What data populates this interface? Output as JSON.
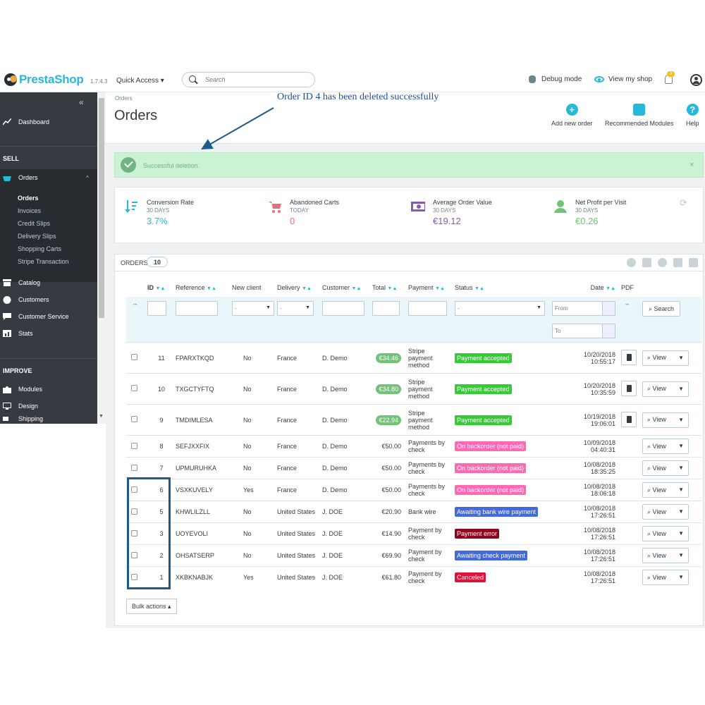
{
  "header": {
    "logo": "PrestaShop",
    "version": "1.7.4.3",
    "quick_access": "Quick Access ▾",
    "search_placeholder": "Search",
    "debug_mode": "Debug mode",
    "view_shop": "View my shop",
    "notif_count": "3"
  },
  "sidebar": {
    "collapse": "«",
    "dashboard": "Dashboard",
    "sell": "SELL",
    "orders": "Orders",
    "sub": [
      "Orders",
      "Invoices",
      "Credit Slips",
      "Delivery Slips",
      "Shopping Carts",
      "Stripe Transaction"
    ],
    "catalog": "Catalog",
    "customers": "Customers",
    "customer_service": "Customer Service",
    "stats": "Stats",
    "improve": "IMPROVE",
    "modules": "Modules",
    "design": "Design",
    "shipping": "Shipping"
  },
  "page": {
    "breadcrumb": "Orders",
    "title": "Orders",
    "add_order": "Add new order",
    "recommended": "Recommended Modules",
    "help": "Help"
  },
  "annotation": "Order ID 4 has been deleted successfully",
  "alert": {
    "message": "Successful deletion.",
    "close": "×"
  },
  "kpis": [
    {
      "title": "Conversion Rate",
      "period": "30 DAYS",
      "value": "3.7%",
      "color": "#25b9d7"
    },
    {
      "title": "Abandoned Carts",
      "period": "TODAY",
      "value": "0",
      "color": "#e76d7a"
    },
    {
      "title": "Average Order Value",
      "period": "30 DAYS",
      "value": "€19.12",
      "color": "#8a5aab"
    },
    {
      "title": "Net Profit per Visit",
      "period": "30 DAYS",
      "value": "€0.26",
      "color": "#72c279"
    }
  ],
  "orders_panel": {
    "title": "ORDERS",
    "count": "10",
    "columns": [
      "ID",
      "Reference",
      "New client",
      "Delivery",
      "Customer",
      "Total",
      "Payment",
      "Status",
      "Date",
      "PDF"
    ],
    "filter": {
      "select": "-",
      "from": "From",
      "to": "To",
      "dash": "--",
      "search": "Search"
    },
    "view": "View",
    "bulk": "Bulk actions ▴"
  },
  "orders": [
    {
      "id": "11",
      "ref": "FPARXTKQD",
      "new": "No",
      "delivery": "France",
      "customer": "D. Demo",
      "total": "€34.46",
      "pill": true,
      "payment": "Stripe payment method",
      "status": "Payment accepted",
      "status_color": "#32cd32",
      "date": "10/20/2018",
      "time": "10:55:17",
      "pdf": true
    },
    {
      "id": "10",
      "ref": "TXGCTYFTQ",
      "new": "No",
      "delivery": "France",
      "customer": "D. Demo",
      "total": "€34.80",
      "pill": true,
      "payment": "Stripe payment method",
      "status": "Payment accepted",
      "status_color": "#32cd32",
      "date": "10/20/2018",
      "time": "10:35:59",
      "pdf": true
    },
    {
      "id": "9",
      "ref": "TMDIMLESA",
      "new": "No",
      "delivery": "France",
      "customer": "D. Demo",
      "total": "€22.94",
      "pill": true,
      "payment": "Stripe payment method",
      "status": "Payment accepted",
      "status_color": "#32cd32",
      "date": "10/19/2018",
      "time": "19:06:01",
      "pdf": true
    },
    {
      "id": "8",
      "ref": "SEFJXXFIX",
      "new": "No",
      "delivery": "France",
      "customer": "D. Demo",
      "total": "€50.00",
      "pill": false,
      "payment": "Payments by check",
      "status": "On backorder (not paid)",
      "status_color": "#ff69b4",
      "date": "10/09/2018",
      "time": "04:40:31",
      "pdf": false
    },
    {
      "id": "7",
      "ref": "UPMURUHKA",
      "new": "No",
      "delivery": "France",
      "customer": "D. Demo",
      "total": "€50.00",
      "pill": false,
      "payment": "Payments by check",
      "status": "On backorder (not paid)",
      "status_color": "#ff69b4",
      "date": "10/08/2018",
      "time": "18:35:25",
      "pdf": false
    },
    {
      "id": "6",
      "ref": "VSXKUVELY",
      "new": "Yes",
      "delivery": "France",
      "customer": "D. Demo",
      "total": "€50.00",
      "pill": false,
      "payment": "Payments by check",
      "status": "On backorder (not paid)",
      "status_color": "#ff69b4",
      "date": "10/08/2018",
      "time": "18:06:18",
      "pdf": false
    },
    {
      "id": "5",
      "ref": "KHWLILZLL",
      "new": "No",
      "delivery": "United States",
      "customer": "J. DOE",
      "total": "€20.90",
      "pill": false,
      "payment": "Bank wire",
      "status": "Awaiting bank wire payment",
      "status_color": "#4169e1",
      "date": "10/08/2018",
      "time": "17:26:51",
      "pdf": false
    },
    {
      "id": "3",
      "ref": "UOYEVOLI",
      "new": "No",
      "delivery": "United States",
      "customer": "J. DOE",
      "total": "€14.90",
      "pill": false,
      "payment": "Payment by check",
      "status": "Payment error",
      "status_color": "#8f0621",
      "date": "10/08/2018",
      "time": "17:26:51",
      "pdf": false
    },
    {
      "id": "2",
      "ref": "OHSATSERP",
      "new": "No",
      "delivery": "United States",
      "customer": "J. DOE",
      "total": "€69.90",
      "pill": false,
      "payment": "Payment by check",
      "status": "Awaiting check payment",
      "status_color": "#4169e1",
      "date": "10/08/2018",
      "time": "17:26:51",
      "pdf": false
    },
    {
      "id": "1",
      "ref": "XKBKNABJK",
      "new": "Yes",
      "delivery": "United States",
      "customer": "J. DOE",
      "total": "€61.80",
      "pill": false,
      "payment": "Payment by check",
      "status": "Canceled",
      "status_color": "#dc143c",
      "date": "10/08/2018",
      "time": "17:26:51",
      "pdf": false
    }
  ]
}
